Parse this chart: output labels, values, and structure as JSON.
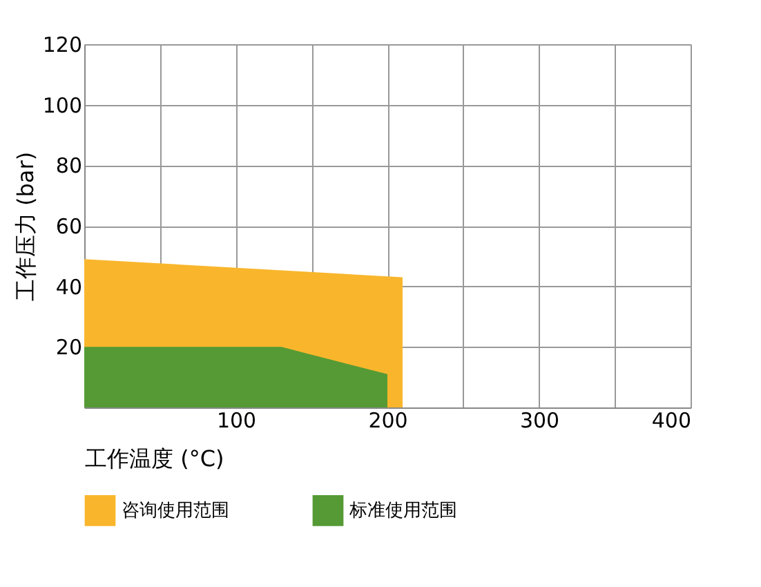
{
  "chart_data": {
    "type": "area",
    "xlabel": "工作温度 (°C)",
    "ylabel": "工作压力 (bar)",
    "series": [
      {
        "name": "咨询使用范围",
        "color": "#f9b62c",
        "x": [
          0,
          210
        ],
        "values": [
          49,
          43
        ]
      },
      {
        "name": "标准使用范围",
        "color": "#559a35",
        "x": [
          0,
          130,
          200
        ],
        "values": [
          20,
          20,
          11
        ]
      }
    ],
    "xlim": [
      0,
      400
    ],
    "xticks": [
      {
        "value": 0,
        "label": null
      },
      {
        "value": 50,
        "label": null
      },
      100,
      {
        "value": 150,
        "label": null
      },
      200,
      {
        "value": 250,
        "label": null
      },
      300,
      {
        "value": 350,
        "label": null
      },
      400
    ],
    "ylim": [
      0,
      120
    ],
    "yticks": [
      {
        "value": 0,
        "label": null
      },
      20,
      40,
      60,
      80,
      100,
      120
    ],
    "grid": true,
    "legend": "bottom"
  }
}
